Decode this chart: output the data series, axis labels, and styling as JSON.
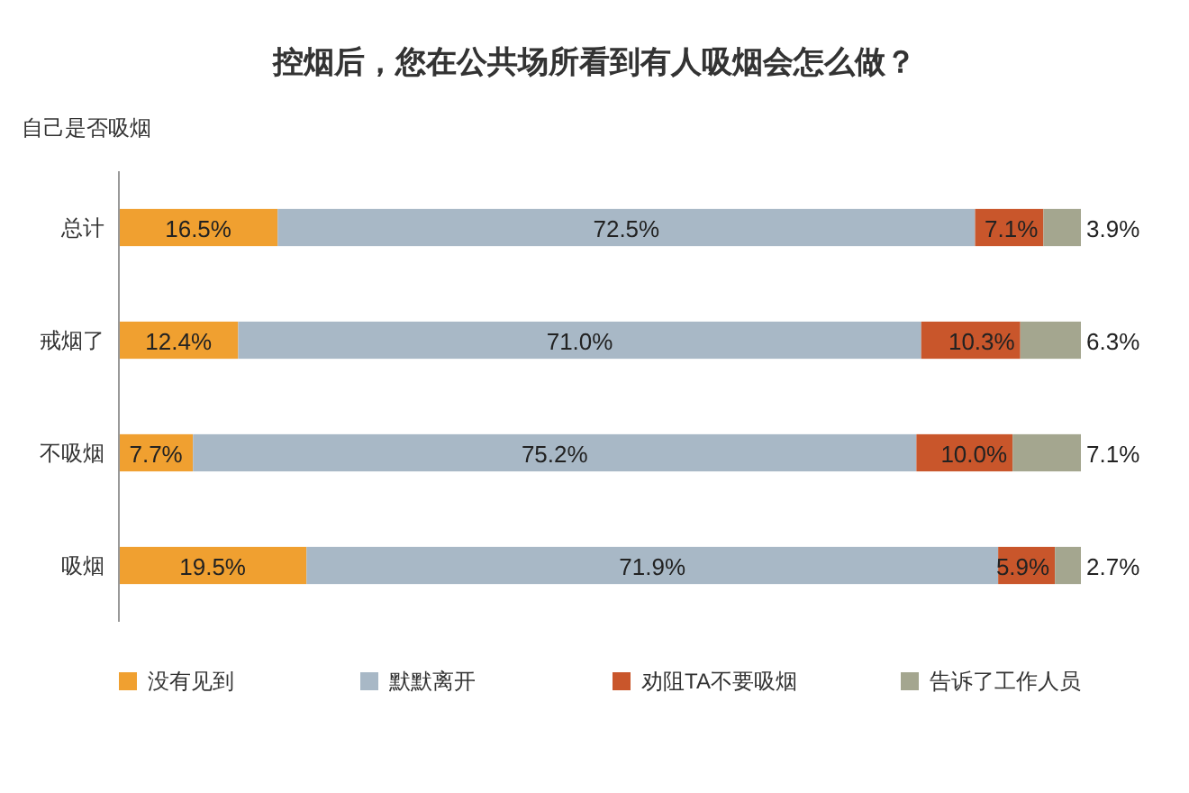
{
  "chart_data": {
    "type": "bar",
    "orientation": "horizontal",
    "stacked": true,
    "title": "控烟后，您在公共场所看到有人吸烟会怎么做？",
    "ylabel": "自己是否吸烟",
    "categories": [
      "总计",
      "戒烟了",
      "不吸烟",
      "吸烟"
    ],
    "series": [
      {
        "name": "没有见到",
        "color": "#f0a030",
        "values": [
          16.5,
          12.4,
          7.7,
          19.5
        ],
        "value_labels": [
          "16.5%",
          "12.4%",
          "7.7%",
          "19.5%"
        ]
      },
      {
        "name": "默默离开",
        "color": "#a8b8c6",
        "values": [
          72.5,
          71.0,
          75.2,
          71.9
        ],
        "value_labels": [
          "72.5%",
          "71.0%",
          "75.2%",
          "71.9%"
        ]
      },
      {
        "name": "劝阻TA不要吸烟",
        "color": "#c9562b",
        "values": [
          7.1,
          10.3,
          10.0,
          5.9
        ],
        "value_labels": [
          "7.1%",
          "10.3%",
          "10.0%",
          "5.9%"
        ]
      },
      {
        "name": "告诉了工作人员",
        "color": "#a4a68f",
        "values": [
          3.9,
          6.3,
          7.1,
          2.7
        ],
        "value_labels": [
          "3.9%",
          "6.3%",
          "7.1%",
          "2.7%"
        ]
      }
    ],
    "legend": "bottom"
  }
}
